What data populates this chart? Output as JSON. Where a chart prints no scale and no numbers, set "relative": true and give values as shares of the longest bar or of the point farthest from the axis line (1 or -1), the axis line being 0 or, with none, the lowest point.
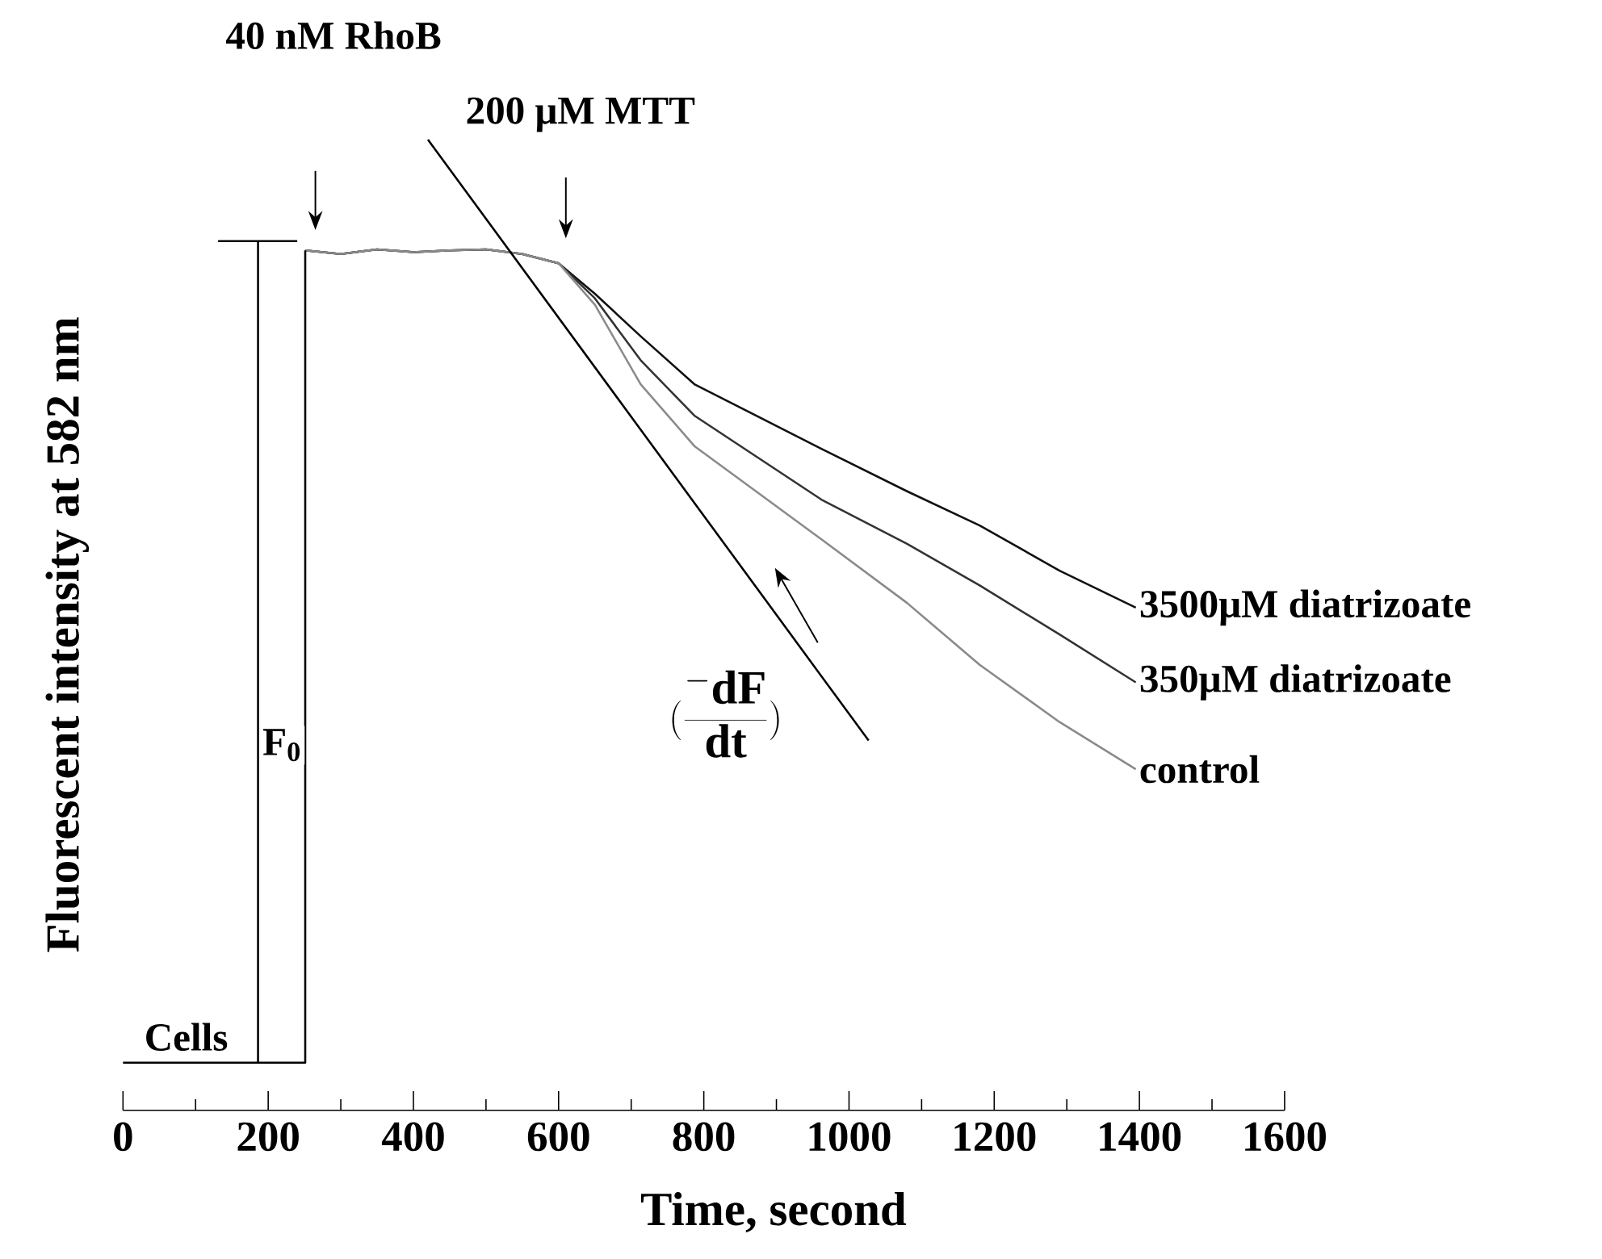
{
  "chart_data": {
    "type": "line",
    "relative": true,
    "xlabel": "Time, second",
    "ylabel": "Fluorescent intensity at 582 nm",
    "xlim": [
      0,
      1600
    ],
    "xticks": [
      0,
      200,
      400,
      600,
      800,
      1000,
      1200,
      1400,
      1600
    ],
    "grid": false,
    "legend": false,
    "marker": "none",
    "line_style": "solid",
    "series": [
      {
        "name": "3500μM diatrizoate",
        "color": "#111111",
        "x": [
          251,
          300,
          350,
          400,
          450,
          500,
          550,
          600,
          650,
          713,
          787,
          962,
          1080,
          1180,
          1290,
          1395
        ],
        "values": [
          0.88,
          0.876,
          0.881,
          0.878,
          0.88,
          0.881,
          0.876,
          0.866,
          0.833,
          0.787,
          0.735,
          0.665,
          0.619,
          0.582,
          0.533,
          0.493
        ]
      },
      {
        "name": "350μM diatrizoate",
        "color": "#333333",
        "x": [
          251,
          300,
          350,
          400,
          450,
          500,
          550,
          600,
          650,
          713,
          787,
          962,
          1080,
          1180,
          1290,
          1395
        ],
        "values": [
          0.88,
          0.876,
          0.881,
          0.878,
          0.88,
          0.881,
          0.876,
          0.866,
          0.828,
          0.761,
          0.701,
          0.61,
          0.562,
          0.517,
          0.464,
          0.412
        ]
      },
      {
        "name": "control",
        "color": "#8a8a8a",
        "x": [
          251,
          300,
          350,
          400,
          450,
          500,
          550,
          600,
          650,
          713,
          787,
          962,
          1080,
          1180,
          1290,
          1395
        ],
        "values": [
          0.88,
          0.876,
          0.881,
          0.878,
          0.88,
          0.881,
          0.876,
          0.866,
          0.821,
          0.735,
          0.668,
          0.567,
          0.498,
          0.431,
          0.369,
          0.318
        ]
      },
      {
        "color": "#000000",
        "x": [
          0,
          251,
          251
        ],
        "values": [
          0,
          0,
          0.88
        ]
      },
      {
        "color": "#000000",
        "x": [
          420,
          1027
        ],
        "values": [
          1,
          0.349
        ]
      },
      {
        "color": "#000000",
        "x": [
          131,
          240
        ],
        "values": [
          0.89,
          0.89
        ]
      },
      {
        "color": "#000000",
        "x": [
          186,
          186
        ],
        "values": [
          0,
          0.89
        ]
      }
    ],
    "annotations": [
      "40 nM RhoB",
      "200 μM MTT",
      "\\Bigl(\\frac{^{-}\\mathbf{dF}}{\\mathbf{dt}}\\Bigr)",
      "F$_{0}$",
      "Cells"
    ]
  }
}
